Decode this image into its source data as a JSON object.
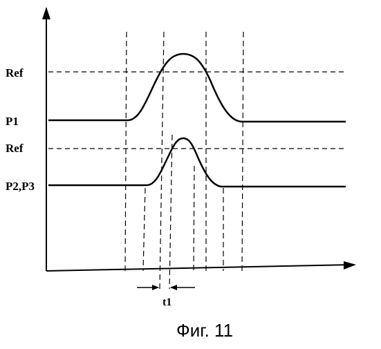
{
  "labels": {
    "ref_upper": "Ref",
    "p1": "P1",
    "ref_lower": "Ref",
    "p2p3": "P2,P3",
    "t1": "t1"
  },
  "caption": "Фиг. 11"
}
